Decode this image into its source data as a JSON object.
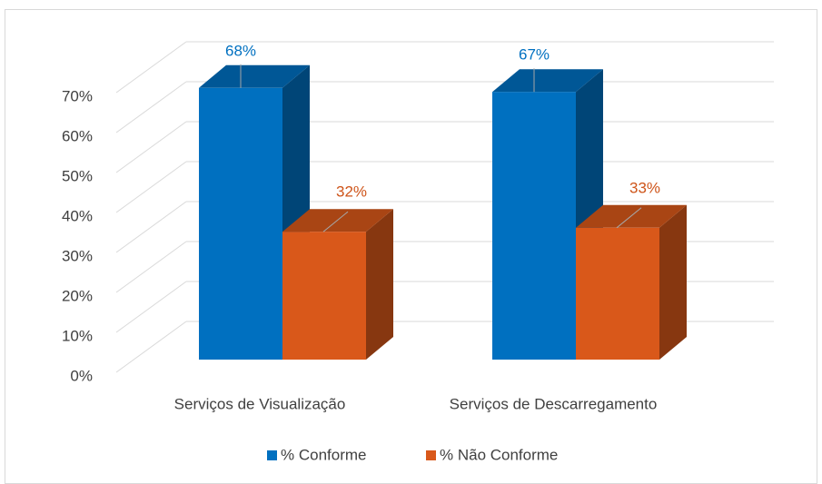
{
  "chart_data": {
    "type": "bar3d",
    "categories": [
      "Serviços de Visualização",
      "Serviços de Descarregamento"
    ],
    "series": [
      {
        "name": "% Conforme",
        "color": "#0070c0",
        "values": [
          68,
          67
        ],
        "value_labels": [
          "68%",
          "67%"
        ]
      },
      {
        "name": "% Não Conforme",
        "color": "#d9581a",
        "values": [
          32,
          33
        ],
        "value_labels": [
          "32%",
          "33%"
        ]
      }
    ],
    "ylim": [
      0,
      70
    ],
    "yticks": [
      {
        "value": 0,
        "label": "0%"
      },
      {
        "value": 10,
        "label": "10%"
      },
      {
        "value": 20,
        "label": "20%"
      },
      {
        "value": 30,
        "label": "30%"
      },
      {
        "value": 40,
        "label": "40%"
      },
      {
        "value": 50,
        "label": "50%"
      },
      {
        "value": 60,
        "label": "60%"
      },
      {
        "value": 70,
        "label": "70%"
      }
    ],
    "grid": true,
    "legend": "bottom"
  }
}
